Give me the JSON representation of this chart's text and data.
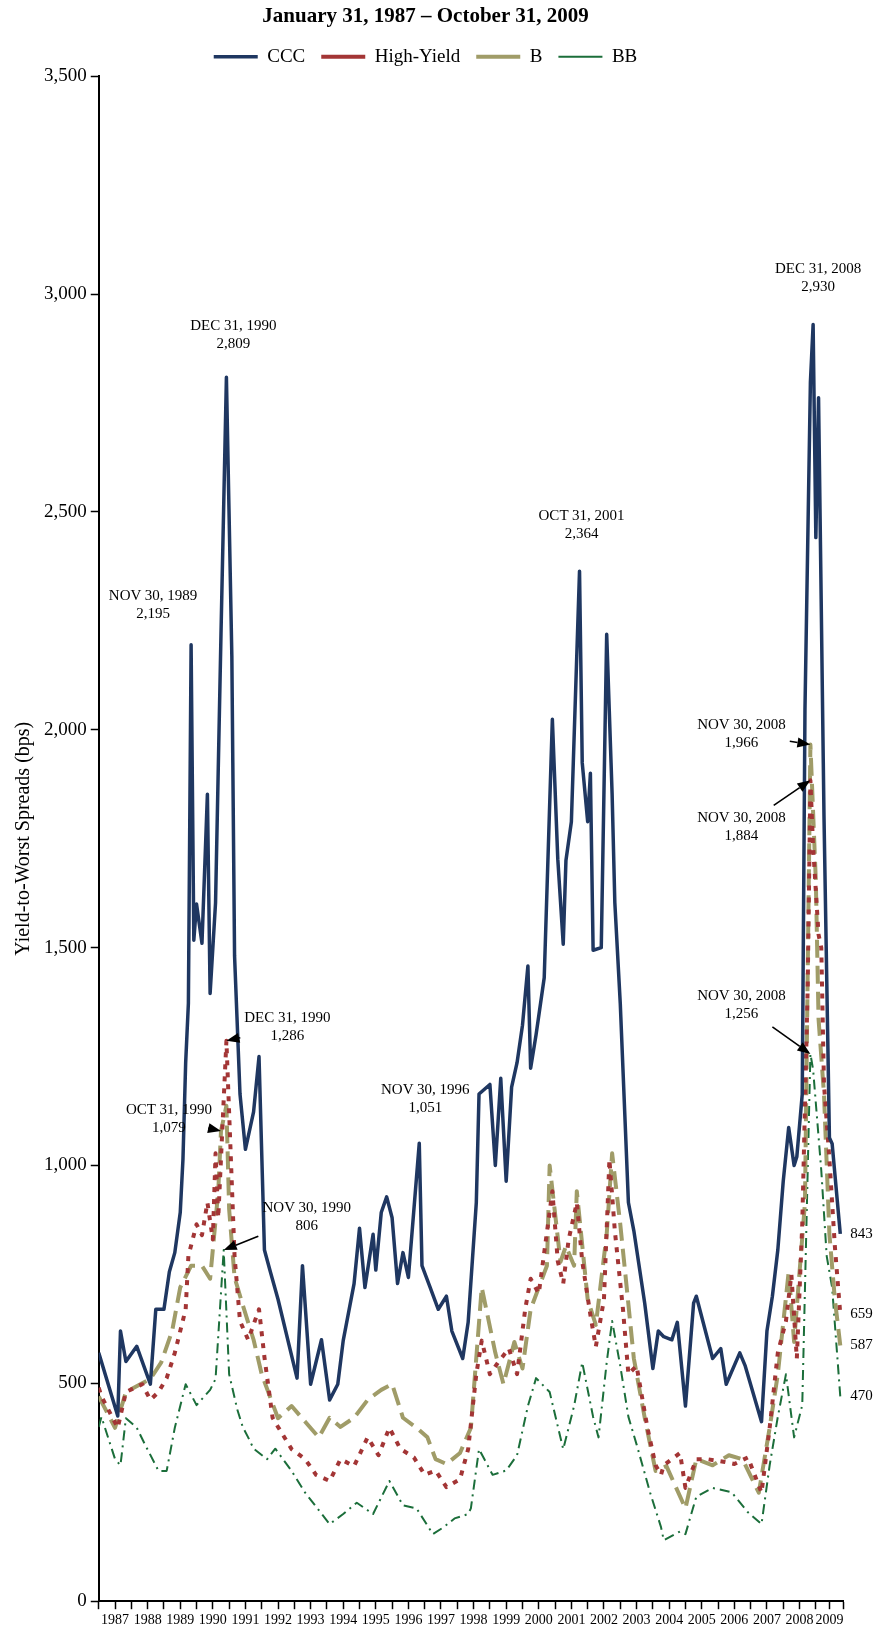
{
  "chart_data": {
    "type": "line",
    "title": "January 31, 1987 – October 31, 2009",
    "ylabel": "Yield-to-Worst Spreads (bps)",
    "xlim": [
      "1987-01",
      "2009-11"
    ],
    "xticks": [
      {
        "value": "1987-01",
        "label": null
      },
      {
        "value": "1987-07",
        "label": "1987"
      },
      {
        "value": "1988-01",
        "label": null
      },
      {
        "value": "1988-07",
        "label": "1988"
      },
      {
        "value": "1989-01",
        "label": null
      },
      {
        "value": "1989-07",
        "label": "1989"
      },
      {
        "value": "1990-01",
        "label": null
      },
      {
        "value": "1990-07",
        "label": "1990"
      },
      {
        "value": "1991-01",
        "label": null
      },
      {
        "value": "1991-07",
        "label": "1991"
      },
      {
        "value": "1992-01",
        "label": null
      },
      {
        "value": "1992-07",
        "label": "1992"
      },
      {
        "value": "1993-01",
        "label": null
      },
      {
        "value": "1993-07",
        "label": "1993"
      },
      {
        "value": "1994-01",
        "label": null
      },
      {
        "value": "1994-07",
        "label": "1994"
      },
      {
        "value": "1995-01",
        "label": null
      },
      {
        "value": "1995-07",
        "label": "1995"
      },
      {
        "value": "1996-01",
        "label": null
      },
      {
        "value": "1996-07",
        "label": "1996"
      },
      {
        "value": "1997-01",
        "label": null
      },
      {
        "value": "1997-07",
        "label": "1997"
      },
      {
        "value": "1998-01",
        "label": null
      },
      {
        "value": "1998-07",
        "label": "1998"
      },
      {
        "value": "1999-01",
        "label": null
      },
      {
        "value": "1999-07",
        "label": "1999"
      },
      {
        "value": "2000-01",
        "label": null
      },
      {
        "value": "2000-07",
        "label": "2000"
      },
      {
        "value": "2001-01",
        "label": null
      },
      {
        "value": "2001-07",
        "label": "2001"
      },
      {
        "value": "2002-01",
        "label": null
      },
      {
        "value": "2002-07",
        "label": "2002"
      },
      {
        "value": "2003-01",
        "label": null
      },
      {
        "value": "2003-07",
        "label": "2003"
      },
      {
        "value": "2004-01",
        "label": null
      },
      {
        "value": "2004-07",
        "label": "2004"
      },
      {
        "value": "2005-01",
        "label": null
      },
      {
        "value": "2005-07",
        "label": "2005"
      },
      {
        "value": "2006-01",
        "label": null
      },
      {
        "value": "2006-07",
        "label": "2006"
      },
      {
        "value": "2007-01",
        "label": null
      },
      {
        "value": "2007-07",
        "label": "2007"
      },
      {
        "value": "2008-01",
        "label": null
      },
      {
        "value": "2008-07",
        "label": "2008"
      },
      {
        "value": "2009-01",
        "label": null
      },
      {
        "value": "2009-06",
        "label": "2009"
      },
      {
        "value": "2009-11",
        "label": null
      }
    ],
    "ylim": [
      0,
      3500
    ],
    "yticks": [
      0,
      500,
      {
        "value": 1000,
        "label": "1,000"
      },
      {
        "value": 1500,
        "label": "1,500"
      },
      {
        "value": 2000,
        "label": "2,000"
      },
      {
        "value": 2500,
        "label": "2,500"
      },
      {
        "value": 3000,
        "label": "3,000"
      },
      {
        "value": 3500,
        "label": "3,500"
      }
    ],
    "grid": false,
    "legend": "top",
    "marker": "none",
    "series": [
      {
        "name": "CCC",
        "color": "#1f3761",
        "line_style": "solid",
        "x": [
          "1987-01",
          "1987-08",
          "1987-09",
          "1987-11",
          "1988-03",
          "1988-08",
          "1988-10",
          "1989-01",
          "1989-03",
          "1989-05",
          "1989-07",
          "1989-08",
          "1989-09",
          "1989-10",
          "1989-11",
          "1989-12",
          "1990-01",
          "1990-03",
          "1990-05",
          "1990-06",
          "1990-08",
          "1990-10",
          "1990-12",
          "1991-02",
          "1991-03",
          "1991-05",
          "1991-07",
          "1991-10",
          "1991-12",
          "1992-02",
          "1992-04",
          "1992-07",
          "1993-02",
          "1993-04",
          "1993-07",
          "1993-11",
          "1994-02",
          "1994-05",
          "1994-07",
          "1994-11",
          "1995-01",
          "1995-03",
          "1995-06",
          "1995-07",
          "1995-09",
          "1995-11",
          "1996-01",
          "1996-03",
          "1996-05",
          "1996-07",
          "1996-11",
          "1996-12",
          "1997-03",
          "1997-06",
          "1997-09",
          "1997-11",
          "1998-03",
          "1998-05",
          "1998-08",
          "1998-09",
          "1999-01",
          "1999-03",
          "1999-05",
          "1999-07",
          "1999-09",
          "1999-11",
          "2000-01",
          "2000-03",
          "2000-04",
          "2000-06",
          "2000-09",
          "2000-12",
          "2001-02",
          "2001-04",
          "2001-05",
          "2001-07",
          "2001-10",
          "2001-11",
          "2002-01",
          "2002-02",
          "2002-03",
          "2002-06",
          "2002-08",
          "2002-10",
          "2002-11",
          "2003-01",
          "2003-04",
          "2003-06",
          "2003-10",
          "2004-01",
          "2004-03",
          "2004-05",
          "2004-08",
          "2004-10",
          "2005-01",
          "2005-04",
          "2005-05",
          "2005-11",
          "2006-02",
          "2006-04",
          "2006-09",
          "2006-11",
          "2007-05",
          "2007-07",
          "2007-09",
          "2007-11",
          "2008-01",
          "2008-03",
          "2008-05",
          "2008-06",
          "2008-08",
          "2008-09",
          "2008-11",
          "2008-12",
          "2009-01",
          "2009-02",
          "2009-04",
          "2009-06",
          "2009-07",
          "2009-10"
        ],
        "values": [
          570,
          425,
          620,
          550,
          585,
          498,
          670,
          670,
          756,
          800,
          892,
          1014,
          1236,
          1372,
          2195,
          1517,
          1600,
          1510,
          1852,
          1395,
          1603,
          2219,
          2809,
          2169,
          1481,
          1164,
          1037,
          1123,
          1250,
          806,
          760,
          693,
          512,
          770,
          498,
          600,
          462,
          498,
          598,
          729,
          856,
          720,
          842,
          760,
          892,
          928,
          880,
          729,
          800,
          743,
          1051,
          770,
          720,
          670,
          700,
          620,
          557,
          640,
          915,
          1164,
          1186,
          1000,
          1200,
          964,
          1180,
          1236,
          1322,
          1458,
          1223,
          1300,
          1431,
          2024,
          1703,
          1508,
          1700,
          1789,
          2364,
          1924,
          1789,
          1900,
          1494,
          1500,
          2219,
          1852,
          1603,
          1372,
          915,
          850,
          684,
          534,
          620,
          607,
          600,
          640,
          448,
          684,
          700,
          557,
          580,
          498,
          570,
          540,
          412,
          620,
          700,
          806,
          964,
          1087,
          1000,
          1020,
          1164,
          2047,
          2798,
          2930,
          2441,
          2762,
          1802,
          1064,
          1050,
          843
        ]
      },
      {
        "name": "High-Yield",
        "color": "#a33535",
        "line_style": "dotted",
        "x": [
          "1987-01",
          "1987-02",
          "1987-08",
          "1987-11",
          "1988-05",
          "1988-08",
          "1988-11",
          "1989-02",
          "1989-05",
          "1989-09",
          "1989-10",
          "1990-01",
          "1990-03",
          "1990-05",
          "1990-07",
          "1990-08",
          "1990-09",
          "1990-12",
          "1991-03",
          "1991-05",
          "1991-08",
          "1991-12",
          "1992-02",
          "1992-05",
          "1992-07",
          "1992-12",
          "1993-05",
          "1993-09",
          "1994-02",
          "1994-06",
          "1994-11",
          "1995-04",
          "1995-08",
          "1995-12",
          "1996-04",
          "1996-09",
          "1997-01",
          "1997-05",
          "1997-09",
          "1998-02",
          "1998-05",
          "1998-08",
          "1998-10",
          "1999-01",
          "1999-04",
          "1999-08",
          "1999-11",
          "2000-02",
          "2000-04",
          "2000-07",
          "2000-12",
          "2001-02",
          "2001-04",
          "2001-06",
          "2001-09",
          "2001-11",
          "2002-02",
          "2002-04",
          "2002-07",
          "2002-09",
          "2002-11",
          "2003-02",
          "2003-04",
          "2003-07",
          "2003-11",
          "2004-02",
          "2004-04",
          "2004-05",
          "2004-11",
          "2005-01",
          "2005-05",
          "2005-09",
          "2006-03",
          "2006-07",
          "2006-12",
          "2007-05",
          "2007-08",
          "2007-11",
          "2008-02",
          "2008-04",
          "2008-06",
          "2008-08",
          "2008-10",
          "2008-11",
          "2008-12",
          "2009-02",
          "2009-03",
          "2009-04",
          "2009-06",
          "2009-08",
          "2009-10"
        ],
        "values": [
          490,
          470,
          398,
          480,
          498,
          462,
          480,
          512,
          570,
          670,
          792,
          865,
          840,
          915,
          830,
          1028,
          880,
          1286,
          792,
          643,
          600,
          670,
          560,
          421,
          400,
          349,
          326,
          290,
          276,
          326,
          310,
          376,
          335,
          398,
          350,
          330,
          290,
          300,
          262,
          280,
          349,
          521,
          598,
          521,
          548,
          580,
          521,
          670,
          740,
          706,
          941,
          780,
          729,
          830,
          915,
          780,
          657,
          584,
          693,
          1014,
          850,
          670,
          521,
          540,
          398,
          312,
          290,
          312,
          340,
          260,
          326,
          326,
          320,
          315,
          330,
          249,
          398,
          570,
          643,
          750,
          557,
          865,
          1408,
          1884,
          1730,
          1530,
          1500,
          1186,
          1014,
          815,
          659
        ]
      },
      {
        "name": "B",
        "color": "#a09c68",
        "line_style": "dashed",
        "x": [
          "1987-01",
          "1987-07",
          "1987-11",
          "1988-05",
          "1988-08",
          "1988-12",
          "1989-04",
          "1989-07",
          "1989-11",
          "1990-03",
          "1990-06",
          "1990-09",
          "1990-10",
          "1990-12",
          "1991-01",
          "1991-03",
          "1991-06",
          "1991-10",
          "1992-01",
          "1992-04",
          "1992-07",
          "1992-12",
          "1993-05",
          "1993-10",
          "1994-02",
          "1994-06",
          "1994-11",
          "1995-04",
          "1995-09",
          "1996-01",
          "1996-05",
          "1996-10",
          "1997-02",
          "1997-05",
          "1997-09",
          "1998-02",
          "1998-06",
          "1998-10",
          "1999-03",
          "1999-06",
          "1999-10",
          "2000-01",
          "2000-04",
          "2000-10",
          "2000-11",
          "2001-03",
          "2001-05",
          "2001-08",
          "2001-09",
          "2002-01",
          "2002-04",
          "2002-08",
          "2002-10",
          "2003-01",
          "2003-03",
          "2003-06",
          "2003-10",
          "2004-02",
          "2004-06",
          "2005-01",
          "2005-05",
          "2005-11",
          "2006-05",
          "2006-10",
          "2007-04",
          "2007-08",
          "2007-11",
          "2008-03",
          "2008-05",
          "2008-09",
          "2008-11",
          "2009-01",
          "2009-02",
          "2009-04",
          "2009-06",
          "2009-08",
          "2009-10"
        ],
        "values": [
          470,
          398,
          480,
          500,
          510,
          548,
          620,
          720,
          770,
          770,
          740,
          941,
          1079,
          1137,
          900,
          743,
          680,
          600,
          521,
          470,
          420,
          448,
          412,
          376,
          421,
          400,
          421,
          462,
          485,
          498,
          421,
          398,
          376,
          326,
          315,
          340,
          398,
          720,
          570,
          498,
          595,
          534,
          670,
          770,
          1000,
          779,
          815,
          770,
          941,
          693,
          634,
          842,
          1028,
          865,
          743,
          557,
          421,
          299,
          310,
          213,
          326,
          312,
          335,
          326,
          249,
          398,
          521,
          756,
          595,
          915,
          1966,
          1653,
          1336,
          1164,
          842,
          693,
          587
        ]
      },
      {
        "name": "BB",
        "color": "#1b6e3a",
        "line_style": "dashdot",
        "x": [
          "1987-01",
          "1987-02",
          "1987-07",
          "1987-09",
          "1987-11",
          "1988-03",
          "1988-06",
          "1988-11",
          "1989-02",
          "1989-05",
          "1989-09",
          "1990-01",
          "1990-06",
          "1990-08",
          "1990-11",
          "1991-01",
          "1991-04",
          "1991-06",
          "1991-08",
          "1991-10",
          "1992-03",
          "1992-06",
          "1992-12",
          "1993-05",
          "1994-02",
          "1994-07",
          "1994-12",
          "1995-06",
          "1995-12",
          "1996-05",
          "1996-10",
          "1997-04",
          "1997-08",
          "1997-12",
          "1998-05",
          "1998-06",
          "1998-09",
          "1999-02",
          "1999-07",
          "1999-11",
          "2000-03",
          "2000-06",
          "2000-11",
          "2001-04",
          "2001-08",
          "2001-11",
          "2002-03",
          "2002-05",
          "2002-08",
          "2002-10",
          "2003-01",
          "2003-04",
          "2003-07",
          "2003-12",
          "2004-04",
          "2004-05",
          "2004-11",
          "2005-01",
          "2005-05",
          "2005-11",
          "2006-06",
          "2006-12",
          "2007-05",
          "2007-08",
          "2007-11",
          "2008-02",
          "2008-05",
          "2008-08",
          "2008-11",
          "2008-12",
          "2009-03",
          "2009-05",
          "2009-07",
          "2009-10"
        ],
        "values": [
          400,
          423,
          326,
          312,
          420,
          398,
          360,
          299,
          299,
          398,
          498,
          450,
          485,
          510,
          806,
          521,
          440,
          400,
          376,
          350,
          326,
          350,
          299,
          249,
          177,
          200,
          226,
          200,
          276,
          220,
          213,
          154,
          170,
          190,
          200,
          213,
          349,
          290,
          300,
          335,
          448,
          512,
          480,
          349,
          448,
          548,
          423,
          376,
          548,
          643,
          540,
          423,
          360,
          249,
          170,
          140,
          160,
          154,
          240,
          260,
          250,
          204,
          177,
          312,
          423,
          521,
          376,
          450,
          1256,
          1220,
          989,
          792,
          720,
          470
        ]
      }
    ],
    "annotations": [
      {
        "text": "NOV 30, 1989\n2,195",
        "x": "1989-11",
        "y": 2195
      },
      {
        "text": "DEC 31, 1990\n2,809",
        "x": "1990-12",
        "y": 2809
      },
      {
        "text": "DEC 31, 1990\n1,286",
        "x": "1990-12",
        "y": 1286
      },
      {
        "text": "OCT 31, 1990\n1,079",
        "x": "1990-10",
        "y": 1079
      },
      {
        "text": "NOV 30, 1990\n806",
        "x": "1990-11",
        "y": 806
      },
      {
        "text": "NOV 30, 1996\n1,051",
        "x": "1996-11",
        "y": 1051
      },
      {
        "text": "OCT 31, 2001\n2,364",
        "x": "2001-10",
        "y": 2364
      },
      {
        "text": "NOV 30, 2008\n1,966",
        "x": "2008-11",
        "y": 1966
      },
      {
        "text": "NOV 30, 2008\n1,884",
        "x": "2008-11",
        "y": 1884
      },
      {
        "text": "NOV 30, 2008\n1,256",
        "x": "2008-11",
        "y": 1256
      },
      {
        "text": "DEC 31, 2008\n2,930",
        "x": "2008-12",
        "y": 2930
      },
      {
        "text": "843",
        "x": "2009-10",
        "y": 843
      },
      {
        "text": "659",
        "x": "2009-10",
        "y": 659
      },
      {
        "text": "587",
        "x": "2009-10",
        "y": 587
      },
      {
        "text": "470",
        "x": "2009-10",
        "y": 470
      }
    ]
  }
}
